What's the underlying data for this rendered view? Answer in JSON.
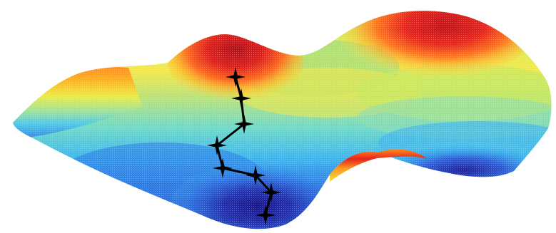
{
  "figure": {
    "kind": "3d-loss-surface-with-descent-path",
    "colormap": [
      "#1e1e9c",
      "#2a6fe0",
      "#3cc8f0",
      "#7de3a0",
      "#e8f050",
      "#ffb020",
      "#f25a1e",
      "#c8141e"
    ],
    "path_color": "#000000",
    "path_marker": "four-point-star"
  }
}
